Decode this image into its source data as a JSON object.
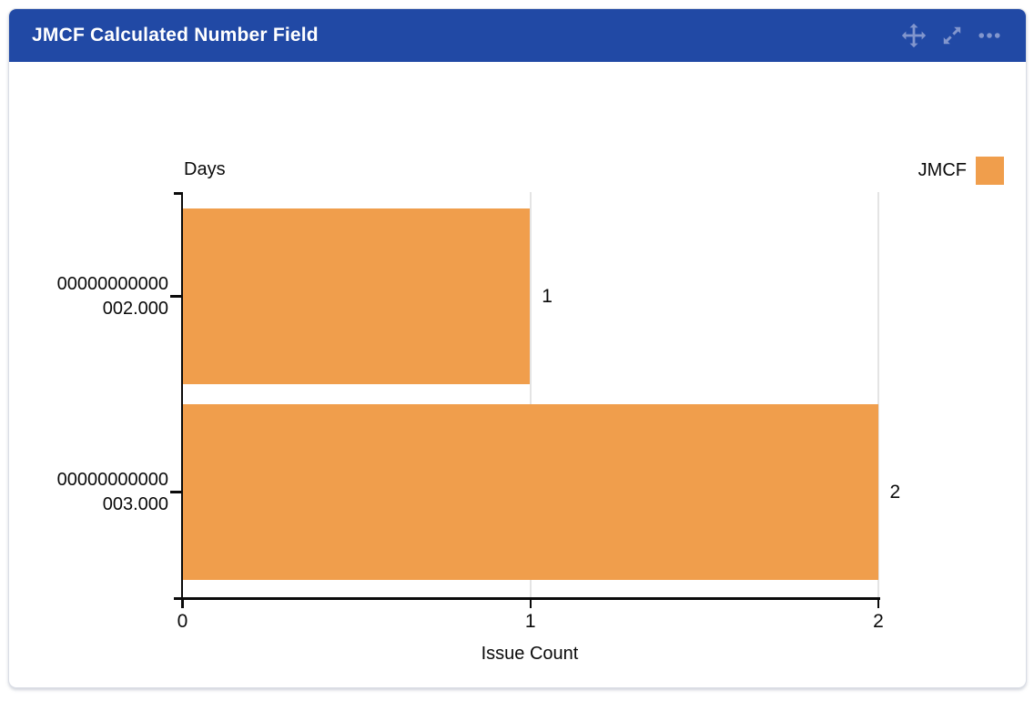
{
  "widget": {
    "title": "JMCF Calculated Number Field",
    "icons": {
      "move": "arrows-move",
      "expand": "arrows-diagonal-resize",
      "more": "ellipsis"
    },
    "colors": {
      "header_bg": "#2149A5",
      "header_text": "#FFFFFF",
      "header_icon": "#8296CD",
      "card_border": "#D9DDE5",
      "bar": "#F09E4C",
      "axis": "#0A0A0A",
      "gridline": "#E4E4E4",
      "text": "#0A0A0A"
    }
  },
  "chart_data": {
    "type": "bar",
    "orientation": "horizontal",
    "title": "",
    "ylabel": "Days",
    "xlabel": "Issue Count",
    "categories": [
      "00000000000\n002.000",
      "00000000000\n003.000"
    ],
    "values": [
      1,
      2
    ],
    "value_labels": [
      "1",
      "2"
    ],
    "x_ticks": [
      0,
      1,
      2
    ],
    "xlim": [
      0,
      2
    ],
    "grid": "vertical",
    "legend": {
      "label": "JMCF",
      "color": "#F09E4C",
      "position": "top-right"
    }
  }
}
